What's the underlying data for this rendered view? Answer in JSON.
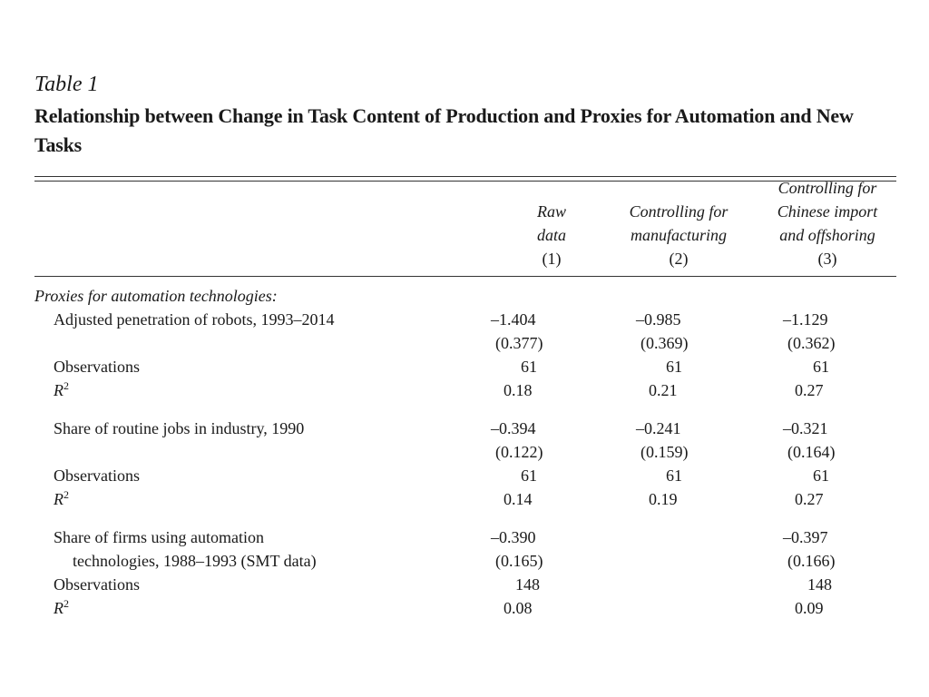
{
  "table_label": "Table 1",
  "table_title": "Relationship between Change in Task Content of Production and Proxies for Automation and New Tasks",
  "columns": [
    {
      "lines": [
        "Raw",
        "data"
      ],
      "num": "(1)"
    },
    {
      "lines": [
        "Controlling for",
        "manufacturing"
      ],
      "num": "(2)"
    },
    {
      "lines": [
        "Controlling for",
        "Chinese import",
        "and offshoring"
      ],
      "num": "(3)"
    }
  ],
  "section_header": "Proxies for automation technologies:",
  "blocks": [
    {
      "label": "Adjusted penetration of robots, 1993–2014",
      "coef": [
        "–1.404",
        "–0.985",
        "–1.129"
      ],
      "se": [
        "(0.377)",
        "(0.369)",
        "(0.362)"
      ],
      "obs_label": "Observations",
      "obs": [
        "61",
        "61",
        "61"
      ],
      "r2_label": "R",
      "r2_sup": "2",
      "r2": [
        "0.18",
        "0.21",
        "0.27"
      ]
    },
    {
      "label": "Share of routine jobs in industry, 1990",
      "coef": [
        "–0.394",
        "–0.241",
        "–0.321"
      ],
      "se": [
        "(0.122)",
        "(0.159)",
        "(0.164)"
      ],
      "obs_label": "Observations",
      "obs": [
        "61",
        "61",
        "61"
      ],
      "r2_label": "R",
      "r2_sup": "2",
      "r2": [
        "0.14",
        "0.19",
        "0.27"
      ]
    },
    {
      "label": "Share of firms using automation",
      "label_cont": "technologies, 1988–1993 (SMT data)",
      "coef": [
        "–0.390",
        "",
        "–0.397"
      ],
      "se": [
        "(0.165)",
        "",
        "(0.166)"
      ],
      "obs_label": "Observations",
      "obs": [
        "148",
        "",
        "148"
      ],
      "r2_label": "R",
      "r2_sup": "2",
      "r2": [
        "0.08",
        "",
        "0.09"
      ]
    }
  ]
}
